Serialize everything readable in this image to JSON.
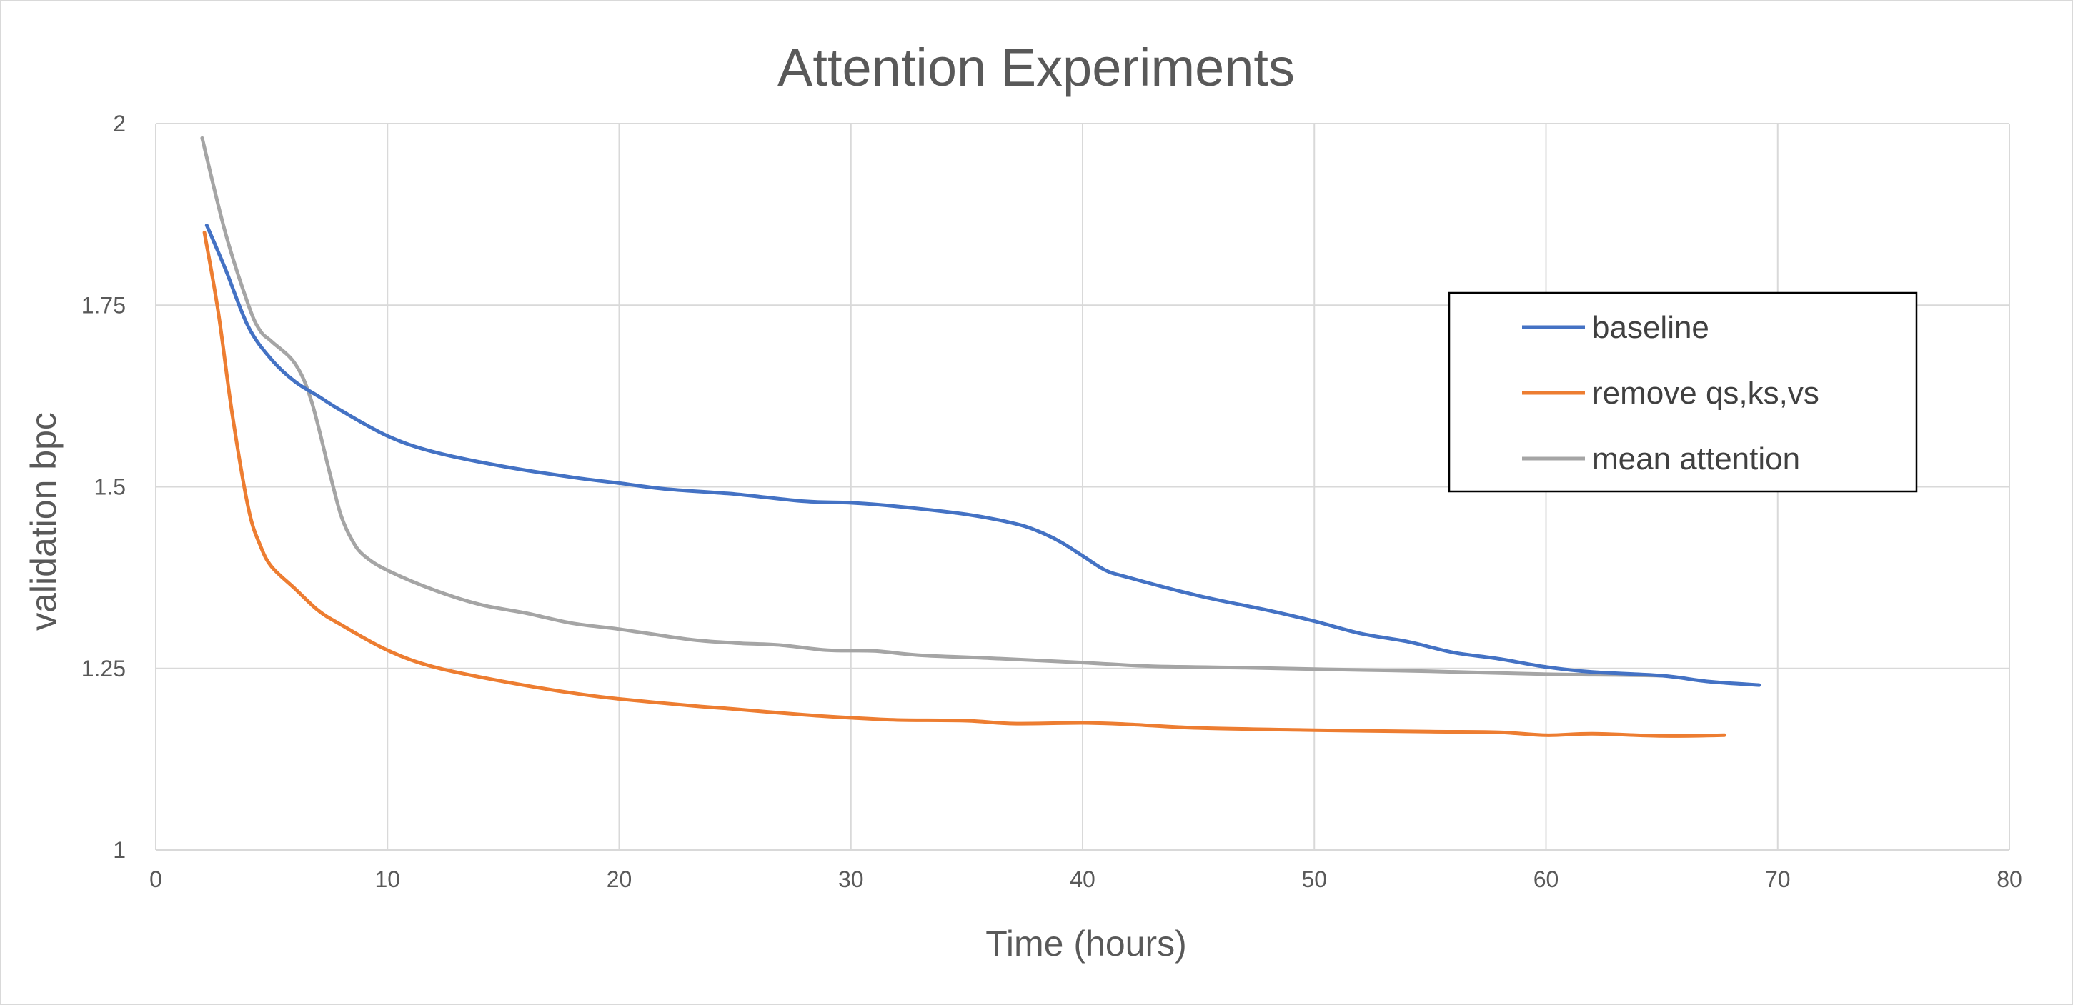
{
  "chart_data": {
    "type": "line",
    "title": "Attention Experiments",
    "xlabel": "Time  (hours)",
    "ylabel": "validation bpc",
    "xlim": [
      0,
      80
    ],
    "ylim": [
      1,
      2
    ],
    "xticks": [
      0,
      10,
      20,
      30,
      40,
      50,
      60,
      70,
      80
    ],
    "yticks": [
      1,
      1.25,
      1.5,
      1.75,
      2
    ],
    "ytick_labels": [
      "1",
      "1.25",
      "1.5",
      "1.75",
      "2"
    ],
    "grid": true,
    "legend_position": "top-right",
    "series": [
      {
        "name": "baseline",
        "color": "#4472c4",
        "points": [
          [
            2.2,
            1.86
          ],
          [
            3,
            1.8
          ],
          [
            4,
            1.72
          ],
          [
            5,
            1.675
          ],
          [
            6,
            1.645
          ],
          [
            7,
            1.625
          ],
          [
            8,
            1.605
          ],
          [
            10,
            1.57
          ],
          [
            12,
            1.548
          ],
          [
            15,
            1.528
          ],
          [
            18,
            1.513
          ],
          [
            20,
            1.505
          ],
          [
            22,
            1.497
          ],
          [
            25,
            1.49
          ],
          [
            28,
            1.48
          ],
          [
            30,
            1.478
          ],
          [
            32,
            1.473
          ],
          [
            35,
            1.462
          ],
          [
            37,
            1.45
          ],
          [
            38,
            1.44
          ],
          [
            39,
            1.425
          ],
          [
            40,
            1.405
          ],
          [
            41,
            1.385
          ],
          [
            42,
            1.375
          ],
          [
            45,
            1.35
          ],
          [
            48,
            1.33
          ],
          [
            50,
            1.315
          ],
          [
            52,
            1.298
          ],
          [
            54,
            1.287
          ],
          [
            56,
            1.272
          ],
          [
            58,
            1.263
          ],
          [
            60,
            1.252
          ],
          [
            62,
            1.245
          ],
          [
            65,
            1.24
          ],
          [
            67,
            1.232
          ],
          [
            69.2,
            1.227
          ]
        ]
      },
      {
        "name": "remove qs,ks,vs",
        "color": "#ed7d31",
        "points": [
          [
            2.1,
            1.85
          ],
          [
            2.7,
            1.74
          ],
          [
            3.3,
            1.6
          ],
          [
            4,
            1.47
          ],
          [
            4.5,
            1.42
          ],
          [
            5,
            1.39
          ],
          [
            6,
            1.36
          ],
          [
            7,
            1.33
          ],
          [
            8,
            1.31
          ],
          [
            10,
            1.275
          ],
          [
            12,
            1.252
          ],
          [
            15,
            1.232
          ],
          [
            18,
            1.216
          ],
          [
            20,
            1.208
          ],
          [
            23,
            1.199
          ],
          [
            25,
            1.194
          ],
          [
            28,
            1.186
          ],
          [
            30,
            1.182
          ],
          [
            32,
            1.179
          ],
          [
            35,
            1.178
          ],
          [
            37,
            1.174
          ],
          [
            40,
            1.175
          ],
          [
            42,
            1.173
          ],
          [
            45,
            1.168
          ],
          [
            50,
            1.165
          ],
          [
            55,
            1.163
          ],
          [
            58,
            1.162
          ],
          [
            60,
            1.158
          ],
          [
            62,
            1.16
          ],
          [
            65,
            1.157
          ],
          [
            67.7,
            1.158
          ]
        ]
      },
      {
        "name": "mean attention",
        "color": "#a5a5a5",
        "points": [
          [
            2,
            1.98
          ],
          [
            3,
            1.85
          ],
          [
            4,
            1.75
          ],
          [
            4.5,
            1.715
          ],
          [
            5,
            1.7
          ],
          [
            6,
            1.67
          ],
          [
            6.7,
            1.62
          ],
          [
            7.5,
            1.52
          ],
          [
            8,
            1.46
          ],
          [
            8.5,
            1.425
          ],
          [
            9,
            1.405
          ],
          [
            10,
            1.385
          ],
          [
            12,
            1.358
          ],
          [
            14,
            1.338
          ],
          [
            16,
            1.326
          ],
          [
            18,
            1.312
          ],
          [
            20,
            1.304
          ],
          [
            23,
            1.29
          ],
          [
            25,
            1.285
          ],
          [
            27,
            1.282
          ],
          [
            29,
            1.275
          ],
          [
            31,
            1.274
          ],
          [
            33,
            1.268
          ],
          [
            36,
            1.264
          ],
          [
            40,
            1.258
          ],
          [
            43,
            1.253
          ],
          [
            47,
            1.251
          ],
          [
            50,
            1.249
          ],
          [
            55,
            1.246
          ],
          [
            60,
            1.242
          ],
          [
            63,
            1.241
          ],
          [
            65,
            1.24
          ]
        ]
      }
    ]
  }
}
